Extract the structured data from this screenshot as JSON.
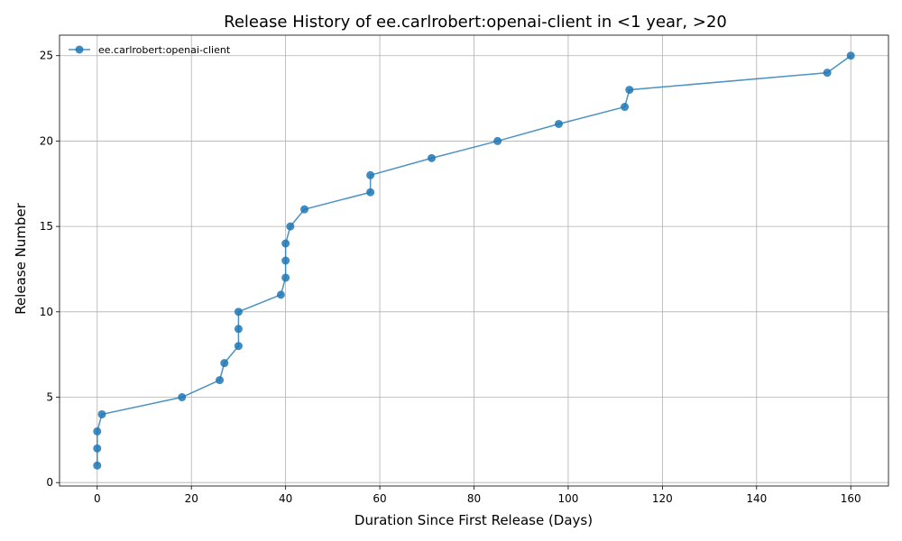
{
  "chart_data": {
    "type": "line",
    "title": "Release History of ee.carlrobert:openai-client in <1 year, >20",
    "xlabel": "Duration Since First Release (Days)",
    "ylabel": "Release Number",
    "xlim": [
      -8,
      168
    ],
    "ylim": [
      -0.2,
      26.2
    ],
    "xticks": [
      0,
      20,
      40,
      60,
      80,
      100,
      120,
      140,
      160
    ],
    "yticks": [
      0,
      5,
      10,
      15,
      20,
      25
    ],
    "grid": true,
    "legend_position": "top-left",
    "series": [
      {
        "name": "ee.carlrobert:openai-client",
        "color": "#1f77b4",
        "x": [
          0,
          0,
          0,
          1,
          18,
          26,
          27,
          30,
          30,
          30,
          39,
          40,
          40,
          40,
          41,
          44,
          58,
          58,
          71,
          85,
          98,
          112,
          113,
          155,
          160
        ],
        "y": [
          1,
          2,
          3,
          4,
          5,
          6,
          7,
          8,
          9,
          10,
          11,
          12,
          13,
          14,
          15,
          16,
          17,
          18,
          19,
          20,
          21,
          22,
          23,
          24,
          25
        ]
      }
    ]
  }
}
